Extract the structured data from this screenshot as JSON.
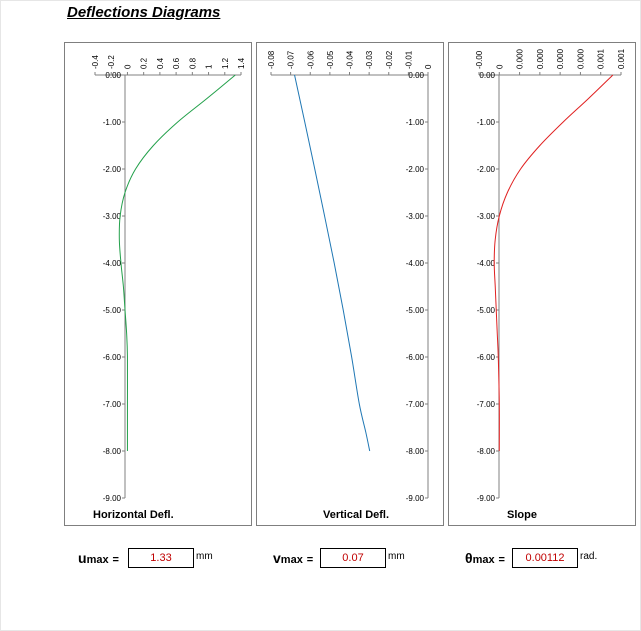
{
  "title": "Deflections Diagrams",
  "chart_data": [
    {
      "type": "line",
      "xlabel": "Horizontal Defl.",
      "x_ticks": [
        "-0.4",
        "-0.2",
        "0",
        "0.2",
        "0.4",
        "0.6",
        "0.8",
        "1",
        "1.2",
        "1.4"
      ],
      "xlim": [
        -0.4,
        1.4
      ],
      "y_ticks": [
        "0.00",
        "-1.00",
        "-2.00",
        "-3.00",
        "-4.00",
        "-5.00",
        "-6.00",
        "-7.00",
        "-8.00",
        "-9.00"
      ],
      "ylim": [
        -9,
        0
      ],
      "color": "#22a04a",
      "series": [
        {
          "x": [
            1.33,
            0.98,
            0.62,
            0.32,
            0.1,
            -0.03,
            -0.09,
            -0.1,
            -0.08,
            -0.05,
            -0.03,
            -0.01,
            0.0,
            0.0,
            0.0
          ],
          "y": [
            0,
            -0.5,
            -1.0,
            -1.5,
            -2.0,
            -2.5,
            -3.0,
            -3.5,
            -4.0,
            -4.5,
            -5.0,
            -5.5,
            -6.0,
            -7.0,
            -8.0
          ]
        }
      ]
    },
    {
      "type": "line",
      "xlabel": "Vertical Defl.",
      "x_ticks": [
        "-0.08",
        "-0.07",
        "-0.06",
        "-0.05",
        "-0.04",
        "-0.03",
        "-0.02",
        "-0.01",
        "0"
      ],
      "xlim": [
        -0.08,
        0
      ],
      "y_ticks": [
        "0.00",
        "-1.00",
        "-2.00",
        "-3.00",
        "-4.00",
        "-5.00",
        "-6.00",
        "-7.00",
        "-8.00",
        "-9.00"
      ],
      "ylim": [
        -9,
        0
      ],
      "color": "#1f77b4",
      "series": [
        {
          "x": [
            -0.068,
            -0.0628,
            -0.0577,
            -0.0527,
            -0.0478,
            -0.0432,
            -0.0389,
            -0.035,
            -0.0317,
            -0.0297
          ],
          "y": [
            0,
            -1,
            -2,
            -3,
            -4,
            -5,
            -6,
            -7,
            -7.6,
            -8.0
          ]
        }
      ]
    },
    {
      "type": "line",
      "xlabel": "Slope",
      "x_ticks": [
        "-0.00",
        "0",
        "0.000",
        "0.000",
        "0.000",
        "0.000",
        "0.001",
        "0.001"
      ],
      "xlim": [
        -0.0002,
        0.0012
      ],
      "y_ticks": [
        "0.00",
        "-1.00",
        "-2.00",
        "-3.00",
        "-4.00",
        "-5.00",
        "-6.00",
        "-7.00",
        "-8.00",
        "-9.00"
      ],
      "ylim": [
        -9,
        0
      ],
      "color": "#e02020",
      "series": [
        {
          "x": [
            0.00112,
            0.00088,
            0.00063,
            0.0004,
            0.00021,
            8e-05,
            0.0,
            -4e-05,
            -5e-05,
            -4e-05,
            -3e-05,
            -2e-05,
            -1e-05,
            0.0,
            0.0
          ],
          "y": [
            0,
            -0.5,
            -1.0,
            -1.5,
            -2.0,
            -2.5,
            -3.0,
            -3.5,
            -4.0,
            -4.5,
            -5.0,
            -5.5,
            -6.0,
            -7.0,
            -8.0
          ]
        }
      ]
    }
  ],
  "summary": {
    "umax_symbol": "u",
    "vmax_symbol": "v",
    "thmax_symbol": "θ",
    "max_sub": "max",
    "eq": "=",
    "umax_value": "1.33",
    "umax_unit": "mm",
    "vmax_value": "0.07",
    "vmax_unit": "mm",
    "thmax_value": "0.00112",
    "thmax_unit": "rad."
  }
}
